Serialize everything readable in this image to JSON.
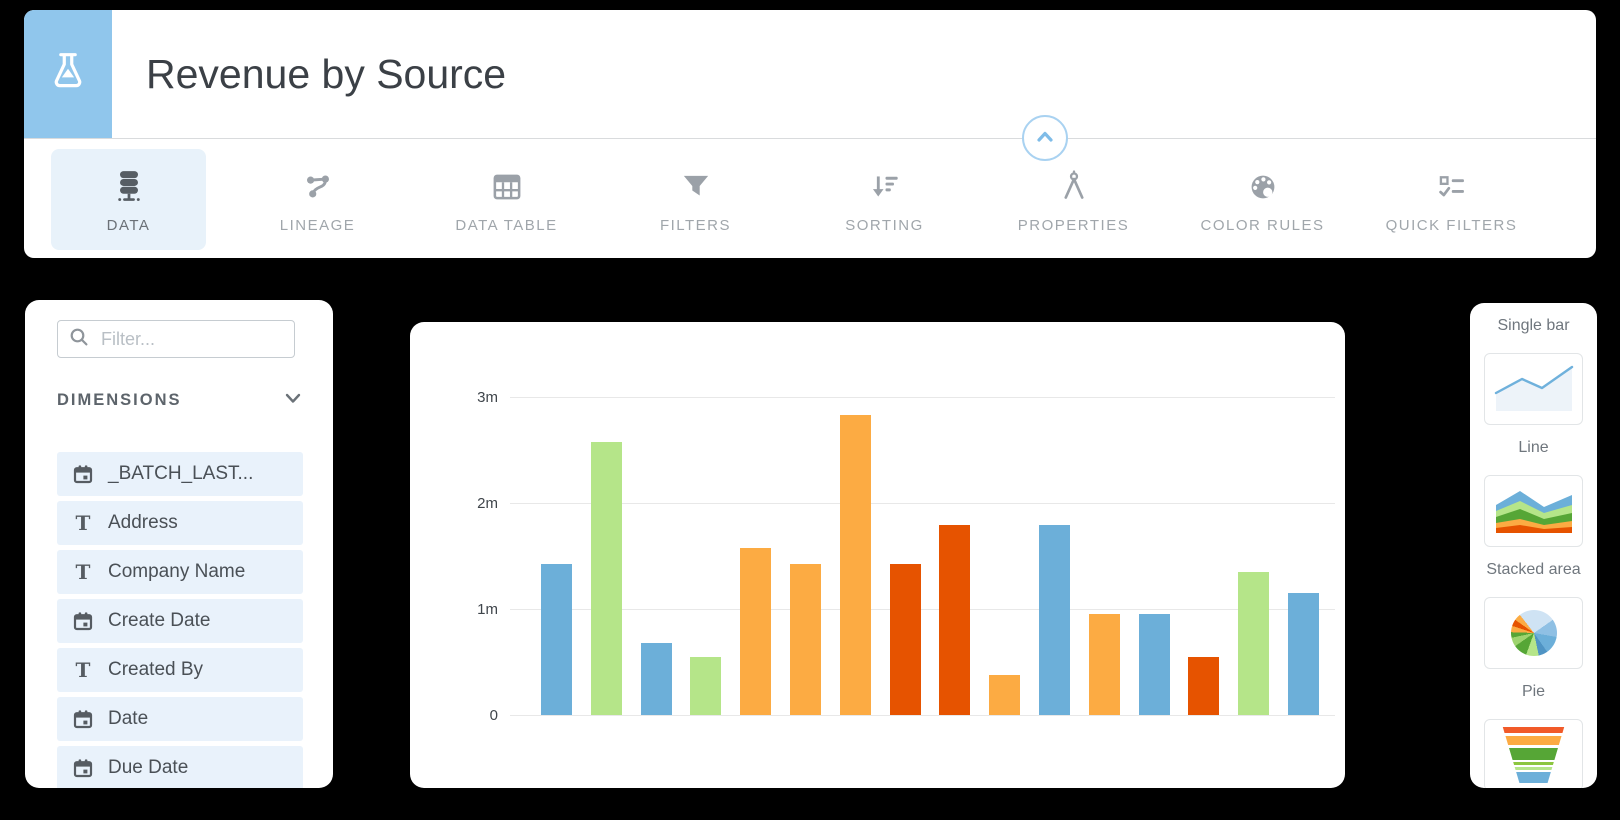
{
  "header": {
    "title": "Revenue by Source",
    "app_icon": "flask-icon"
  },
  "tabs": [
    {
      "label": "DATA",
      "icon": "database-icon",
      "active": true
    },
    {
      "label": "LINEAGE",
      "icon": "lineage-icon",
      "active": false
    },
    {
      "label": "DATA TABLE",
      "icon": "data-table-icon",
      "active": false
    },
    {
      "label": "FILTERS",
      "icon": "filter-funnel-icon",
      "active": false
    },
    {
      "label": "SORTING",
      "icon": "sorting-icon",
      "active": false
    },
    {
      "label": "PROPERTIES",
      "icon": "properties-compass-icon",
      "active": false
    },
    {
      "label": "COLOR RULES",
      "icon": "color-palette-icon",
      "active": false
    },
    {
      "label": "QUICK FILTERS",
      "icon": "quick-filters-icon",
      "active": false
    }
  ],
  "sidebar": {
    "filter_placeholder": "Filter...",
    "section_label": "DIMENSIONS",
    "items": [
      {
        "label": "_BATCH_LAST...",
        "type": "date"
      },
      {
        "label": "Address",
        "type": "text"
      },
      {
        "label": "Company Name",
        "type": "text"
      },
      {
        "label": "Create Date",
        "type": "date"
      },
      {
        "label": "Created By",
        "type": "text"
      },
      {
        "label": "Date",
        "type": "date"
      },
      {
        "label": "Due Date",
        "type": "date"
      }
    ]
  },
  "chart_data": {
    "type": "bar",
    "title": "Revenue by Source",
    "xlabel": "",
    "ylabel": "",
    "unit": "millions",
    "ylim": [
      0,
      3
    ],
    "grid": true,
    "y_ticks": [
      {
        "value": 0,
        "label": "0"
      },
      {
        "value": 1,
        "label": "1m"
      },
      {
        "value": 2,
        "label": "2m"
      },
      {
        "value": 3,
        "label": "3m"
      }
    ],
    "bars": [
      {
        "value": 1.42,
        "color": "blue"
      },
      {
        "value": 2.58,
        "color": "green"
      },
      {
        "value": 0.68,
        "color": "blue"
      },
      {
        "value": 0.55,
        "color": "green"
      },
      {
        "value": 1.58,
        "color": "orange"
      },
      {
        "value": 1.42,
        "color": "orange"
      },
      {
        "value": 2.83,
        "color": "orange"
      },
      {
        "value": 1.42,
        "color": "red"
      },
      {
        "value": 1.79,
        "color": "red"
      },
      {
        "value": 0.38,
        "color": "orange"
      },
      {
        "value": 1.79,
        "color": "blue"
      },
      {
        "value": 0.95,
        "color": "orange"
      },
      {
        "value": 0.95,
        "color": "blue"
      },
      {
        "value": 0.55,
        "color": "red"
      },
      {
        "value": 1.35,
        "color": "green"
      },
      {
        "value": 1.15,
        "color": "blue"
      }
    ],
    "palette": {
      "blue": "#6cafd9",
      "green": "#b5e589",
      "orange": "#fcab43",
      "red": "#e65300"
    }
  },
  "chart_picker": {
    "items": [
      {
        "name": "single-bar",
        "label": "Single bar",
        "tile_visible": false,
        "label_visible": true
      },
      {
        "name": "line",
        "label": "Line",
        "tile_visible": true,
        "label_visible": true
      },
      {
        "name": "stacked-area",
        "label": "Stacked area",
        "tile_visible": true,
        "label_visible": true
      },
      {
        "name": "pie",
        "label": "Pie",
        "tile_visible": true,
        "label_visible": true
      },
      {
        "name": "funnel",
        "label": "",
        "tile_visible": true,
        "label_visible": false
      }
    ]
  },
  "colors": {
    "accent_blue": "#90c6ec",
    "selected_tab_bg": "#e8f2fa",
    "list_item_bg": "#e9f2fb",
    "bar_blue": "#6cafd9",
    "bar_green": "#b5e589",
    "bar_orange": "#fcab43",
    "bar_red": "#e65300",
    "gridline": "#e8e8e8"
  }
}
